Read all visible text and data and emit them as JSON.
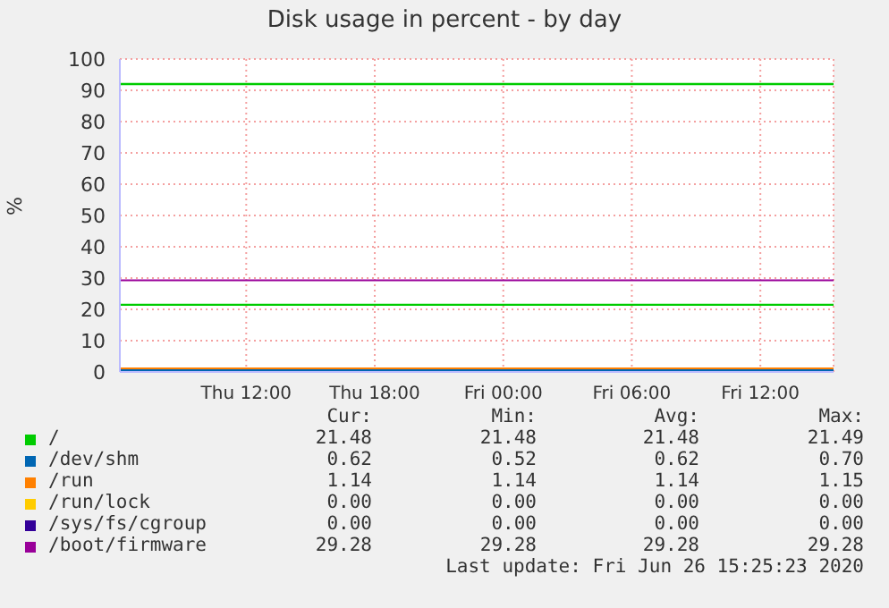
{
  "chart_data": {
    "type": "line",
    "title": "Disk usage in percent - by day",
    "ylabel": "%",
    "x": [
      "2020-06-25T06:06",
      "2020-06-26T15:25"
    ],
    "xlim": [
      "2020-06-25T06:06",
      "2020-06-26T15:25"
    ],
    "xticks": [
      {
        "value": "2020-06-25T12:00",
        "label": "Thu 12:00"
      },
      {
        "value": "2020-06-25T18:00",
        "label": "Thu 18:00"
      },
      {
        "value": "2020-06-26T00:00",
        "label": "Fri 00:00"
      },
      {
        "value": "2020-06-26T06:00",
        "label": "Fri 06:00"
      },
      {
        "value": "2020-06-26T12:00",
        "label": "Fri 12:00"
      }
    ],
    "ylim": [
      0,
      100
    ],
    "yticks": [
      0,
      10,
      20,
      30,
      40,
      50,
      60,
      70,
      80,
      90,
      100
    ],
    "grid": true,
    "legend": "bottom",
    "marker": "none",
    "line_style": "solid",
    "series": [
      {
        "name": "/",
        "color": "#00cc00",
        "values": [
          21.48,
          21.48
        ]
      },
      {
        "name": "/dev/shm",
        "color": "#0066b3",
        "values": [
          0.62,
          0.62
        ]
      },
      {
        "name": "/run",
        "color": "#ff8000",
        "values": [
          1.14,
          1.14
        ]
      },
      {
        "name": "/run/lock",
        "color": "#ffcc00",
        "values": [
          null,
          null
        ]
      },
      {
        "name": "/sys/fs/cgroup",
        "color": "#330099",
        "values": [
          null,
          null
        ]
      },
      {
        "name": "/boot/firmware",
        "color": "#990099",
        "values": [
          29.28,
          29.28
        ]
      }
    ],
    "ref_lines": [
      {
        "axis": "y",
        "value": 92,
        "color": "#00cc00"
      }
    ],
    "annotations": [
      "Cur:",
      "Min:",
      "Avg:",
      "Max:",
      "21.48",
      "21.48",
      "21.48",
      "21.49",
      "0.62",
      "0.52",
      "0.62",
      "0.70",
      "1.14",
      "1.14",
      "1.14",
      "1.15",
      "0.00",
      "0.00",
      "0.00",
      "0.00",
      "0.00",
      "0.00",
      "0.00",
      "0.00",
      "29.28",
      "29.28",
      "29.28",
      "29.28",
      "Last update: Fri Jun 26 15:25:23 2020"
    ]
  }
}
